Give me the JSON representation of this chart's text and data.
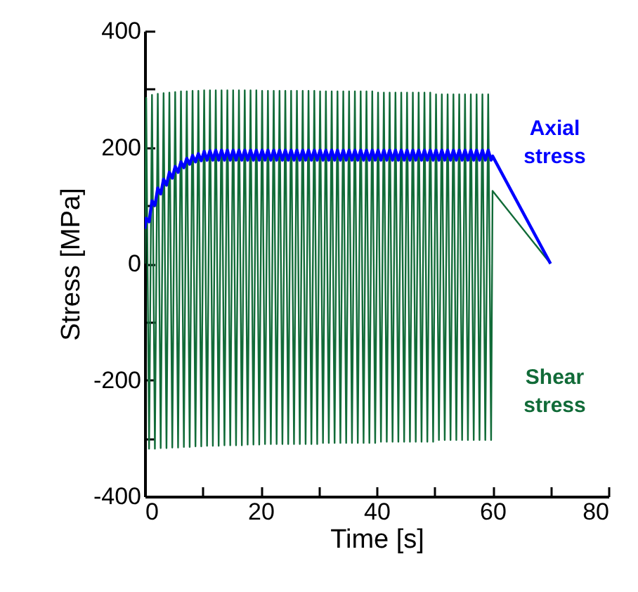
{
  "chart_data": {
    "type": "line",
    "xlabel": "Time [s]",
    "ylabel": "Stress [MPa]",
    "xlim": [
      0,
      80
    ],
    "xticks": [
      0,
      {
        "value": 10,
        "label": null
      },
      20,
      {
        "value": 30,
        "label": null
      },
      40,
      {
        "value": 50,
        "label": null
      },
      60,
      {
        "value": 70,
        "label": null
      },
      80
    ],
    "ylim": [
      -400,
      400
    ],
    "yticks": [
      -400,
      {
        "value": -300,
        "label": null
      },
      -200,
      {
        "value": -100,
        "label": null
      },
      0,
      {
        "value": 100,
        "label": null
      },
      200,
      {
        "value": 300,
        "label": null
      },
      400
    ],
    "grid": false,
    "legend": false,
    "marker": "none",
    "line_style": "solid",
    "x": [
      0,
      0.25,
      0.75,
      1.25,
      1.75,
      2.25,
      2.75,
      3.25,
      3.75,
      4.25,
      4.75,
      5.25,
      5.75,
      6.25,
      6.75,
      7.25,
      7.75,
      8.25,
      8.75,
      9.25,
      9.75,
      10.25,
      10.75,
      11.25,
      11.75,
      12.25,
      12.75,
      13.25,
      13.75,
      14.25,
      14.75,
      15.25,
      15.75,
      16.25,
      16.75,
      17.25,
      17.75,
      18.25,
      18.75,
      19.25,
      19.75,
      20.25,
      20.75,
      21.25,
      21.75,
      22.25,
      22.75,
      23.25,
      23.75,
      24.25,
      24.75,
      25.25,
      25.75,
      26.25,
      26.75,
      27.25,
      27.75,
      28.25,
      28.75,
      29.25,
      29.75,
      30.25,
      30.75,
      31.25,
      31.75,
      32.25,
      32.75,
      33.25,
      33.75,
      34.25,
      34.75,
      35.25,
      35.75,
      36.25,
      36.75,
      37.25,
      37.75,
      38.25,
      38.75,
      39.25,
      39.75,
      40.25,
      40.75,
      41.25,
      41.75,
      42.25,
      42.75,
      43.25,
      43.75,
      44.25,
      44.75,
      45.25,
      45.75,
      46.25,
      46.75,
      47.25,
      47.75,
      48.25,
      48.75,
      49.25,
      49.75,
      50.25,
      50.75,
      51.25,
      51.75,
      52.25,
      52.75,
      53.25,
      53.75,
      54.25,
      54.75,
      55.25,
      55.75,
      56.25,
      56.75,
      57.25,
      57.75,
      58.25,
      58.75,
      59.25,
      59.75,
      60,
      70
    ],
    "series": [
      {
        "name": "Shear stress",
        "color": "#116b38",
        "values": [
          0,
          285,
          -318,
          290,
          -318,
          292,
          -317,
          293,
          -317,
          294,
          -316,
          295,
          -316,
          296,
          -315,
          296,
          -315,
          297,
          -314,
          297,
          -314,
          298,
          -313,
          298,
          -313,
          298,
          -313,
          298,
          -312,
          298,
          -312,
          298,
          -312,
          298,
          -312,
          298,
          -311,
          298,
          -311,
          298,
          -311,
          297,
          -310,
          297,
          -310,
          297,
          -310,
          297,
          -310,
          297,
          -310,
          297,
          -310,
          297,
          -310,
          297,
          -310,
          297,
          -310,
          297,
          -310,
          296,
          -308,
          296,
          -308,
          296,
          -308,
          296,
          -308,
          296,
          -308,
          296,
          -308,
          296,
          -308,
          296,
          -308,
          296,
          -308,
          296,
          -308,
          294,
          -306,
          294,
          -306,
          294,
          -306,
          294,
          -306,
          294,
          -306,
          294,
          -306,
          294,
          -306,
          294,
          -306,
          294,
          -306,
          294,
          -306,
          291,
          -303,
          291,
          -303,
          291,
          -303,
          291,
          -303,
          291,
          -303,
          291,
          -303,
          291,
          -303,
          291,
          -303,
          291,
          -303,
          291,
          -303,
          125,
          0
        ]
      },
      {
        "name": "Axial stress",
        "color": "#0000ff",
        "values": [
          60,
          78,
          72,
          108,
          100,
          130,
          120,
          145,
          135,
          157,
          147,
          167,
          157,
          175,
          165,
          181,
          171,
          186,
          175,
          189,
          177,
          193,
          178,
          194,
          178,
          195,
          178,
          195,
          178,
          195,
          178,
          195,
          178,
          195,
          178,
          195,
          178,
          195,
          178,
          195,
          178,
          195,
          178,
          195,
          178,
          195,
          178,
          195,
          178,
          195,
          178,
          195,
          178,
          195,
          178,
          195,
          178,
          195,
          178,
          195,
          178,
          195,
          178,
          195,
          178,
          195,
          178,
          195,
          178,
          195,
          178,
          195,
          178,
          195,
          178,
          195,
          178,
          195,
          178,
          195,
          178,
          195,
          178,
          195,
          178,
          195,
          178,
          195,
          178,
          195,
          178,
          195,
          178,
          195,
          178,
          195,
          178,
          195,
          178,
          195,
          178,
          195,
          178,
          195,
          178,
          195,
          178,
          195,
          178,
          195,
          178,
          195,
          178,
          195,
          178,
          195,
          178,
          195,
          178,
          195,
          178,
          185,
          0
        ]
      }
    ]
  }
}
